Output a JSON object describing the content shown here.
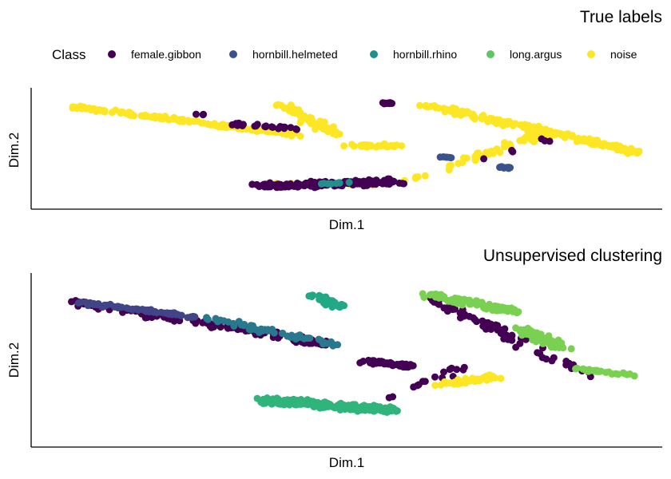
{
  "legend": {
    "title": "Class",
    "entries": [
      {
        "label": "female.gibbon",
        "color": "#440154"
      },
      {
        "label": "hornbill.helmeted",
        "color": "#3b528b"
      },
      {
        "label": "hornbill.rhino",
        "color": "#21908c"
      },
      {
        "label": "long.argus",
        "color": "#5dc863"
      },
      {
        "label": "noise",
        "color": "#fde725"
      }
    ]
  },
  "chart_data": [
    {
      "type": "scatter",
      "title": "True labels",
      "xlabel": "Dim.1",
      "ylabel": "Dim.2",
      "xlim": [
        0,
        100
      ],
      "ylim": [
        0,
        100
      ],
      "ticks": "none",
      "grid": false,
      "point_color_by": "Class",
      "series": [
        {
          "name": "noise",
          "color": "#fde725",
          "clusters": [
            {
              "x": [
                4,
                42
              ],
              "y": [
                89,
                62
              ],
              "n": 140,
              "spread": 2
            },
            {
              "x": [
                39,
                49
              ],
              "y": [
                92,
                62
              ],
              "n": 60,
              "spread": 2.5
            },
            {
              "x": [
                51,
                59
              ],
              "y": [
                52,
                52
              ],
              "n": 35,
              "spread": 2
            },
            {
              "x": [
                63,
                100
              ],
              "y": [
                92,
                45
              ],
              "n": 170,
              "spread": 3
            },
            {
              "x": [
                70,
                85
              ],
              "y": [
                38,
                65
              ],
              "n": 45,
              "spread": 3
            },
            {
              "x": [
                60,
                72
              ],
              "y": [
                18,
                38
              ],
              "n": 10,
              "spread": 3
            },
            {
              "x": [
                37,
                57
              ],
              "y": [
                15,
                15
              ],
              "n": 22,
              "spread": 4
            }
          ]
        },
        {
          "name": "female.gibbon",
          "color": "#440154",
          "clusters": [
            {
              "x": [
                36,
                58
              ],
              "y": [
                13,
                17
              ],
              "n": 180,
              "spread": 4
            },
            {
              "x": [
                56,
                58
              ],
              "y": [
                93,
                93
              ],
              "n": 10,
              "spread": 1
            },
            {
              "x": [
                30,
                42
              ],
              "y": [
                73,
                68
              ],
              "n": 25,
              "spread": 2
            },
            {
              "x": [
                24,
                26
              ],
              "y": [
                82,
                82
              ],
              "n": 3,
              "spread": 1
            },
            {
              "x": [
                72,
                84
              ],
              "y": [
                35,
                58
              ],
              "n": 6,
              "spread": 3
            }
          ]
        },
        {
          "name": "hornbill.helmeted",
          "color": "#3b528b",
          "clusters": [
            {
              "x": [
                66,
                68
              ],
              "y": [
                41,
                41
              ],
              "n": 6,
              "spread": 1.2
            },
            {
              "x": [
                76,
                78
              ],
              "y": [
                31,
                31
              ],
              "n": 10,
              "spread": 1.2
            }
          ]
        },
        {
          "name": "hornbill.rhino",
          "color": "#21908c",
          "clusters": [
            {
              "x": [
                44,
                58
              ],
              "y": [
                14,
                20
              ],
              "n": 8,
              "spread": 1
            }
          ]
        },
        {
          "name": "long.argus",
          "color": "#5dc863",
          "clusters": []
        }
      ]
    },
    {
      "type": "scatter",
      "title": "Unsupervised clustering",
      "xlabel": "Dim.1",
      "ylabel": "Dim.2",
      "xlim": [
        0,
        100
      ],
      "ylim": [
        0,
        100
      ],
      "ticks": "none",
      "grid": false,
      "point_color_by": "cluster",
      "series": [
        {
          "color": "#440154",
          "clusters": [
            {
              "x": [
                4,
                48
              ],
              "y": [
                88,
                60
              ],
              "n": 140,
              "spread": 2.8
            },
            {
              "x": [
                53,
                61
              ],
              "y": [
                50,
                46
              ],
              "n": 50,
              "spread": 2
            },
            {
              "x": [
                64,
                92
              ],
              "y": [
                92,
                40
              ],
              "n": 70,
              "spread": 2.5
            },
            {
              "x": [
                57,
                70
              ],
              "y": [
                26,
                45
              ],
              "n": 16,
              "spread": 3
            }
          ]
        },
        {
          "color": "#414487",
          "clusters": [
            {
              "x": [
                4,
                25
              ],
              "y": [
                88,
                78
              ],
              "n": 70,
              "spread": 1.3
            }
          ]
        },
        {
          "color": "#2a788e",
          "clusters": [
            {
              "x": [
                26,
                48
              ],
              "y": [
                78,
                60
              ],
              "n": 60,
              "spread": 2
            }
          ]
        },
        {
          "color": "#22a884",
          "clusters": [
            {
              "x": [
                44,
                49
              ],
              "y": [
                93,
                85
              ],
              "n": 45,
              "spread": 2
            }
          ]
        },
        {
          "color": "#2fb47c",
          "clusters": [
            {
              "x": [
                36,
                58
              ],
              "y": [
                24,
                18
              ],
              "n": 220,
              "spread": 3.2
            }
          ]
        },
        {
          "color": "#7ad151",
          "clusters": [
            {
              "x": [
                65,
                79
              ],
              "y": [
                92,
                82
              ],
              "n": 90,
              "spread": 2.8
            },
            {
              "x": [
                80,
                87
              ],
              "y": [
                70,
                58
              ],
              "n": 90,
              "spread": 2.5
            },
            {
              "x": [
                89,
                100
              ],
              "y": [
                45,
                40
              ],
              "n": 25,
              "spread": 1.2
            }
          ]
        },
        {
          "color": "#fde725",
          "clusters": [
            {
              "x": [
                67,
                76
              ],
              "y": [
                35,
                40
              ],
              "n": 45,
              "spread": 2.5
            }
          ]
        }
      ]
    }
  ]
}
